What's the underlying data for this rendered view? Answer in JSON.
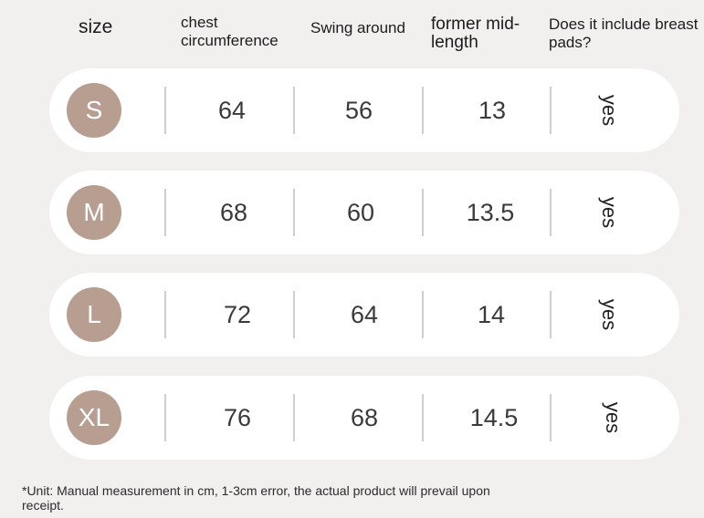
{
  "headers": {
    "size": "size",
    "chest": "chest circumference",
    "swing": "Swing around",
    "mid_length": "former mid-length",
    "breast_pads": "Does it include breast pads?"
  },
  "rows": [
    {
      "size": "S",
      "chest": "64",
      "swing": "56",
      "mid_length": "13",
      "pads": "yes"
    },
    {
      "size": "M",
      "chest": "68",
      "swing": "60",
      "mid_length": "13.5",
      "pads": "yes"
    },
    {
      "size": "L",
      "chest": "72",
      "swing": "64",
      "mid_length": "14",
      "pads": "yes"
    },
    {
      "size": "XL",
      "chest": "76",
      "swing": "68",
      "mid_length": "14.5",
      "pads": "yes"
    }
  ],
  "footer": "*Unit: Manual measurement in cm, 1-3cm error, the actual product will prevail upon receipt.",
  "colors": {
    "background": "#f1f0ef",
    "row": "#ffffff",
    "badge": "#b79e91",
    "separator": "#cfcfcf"
  }
}
